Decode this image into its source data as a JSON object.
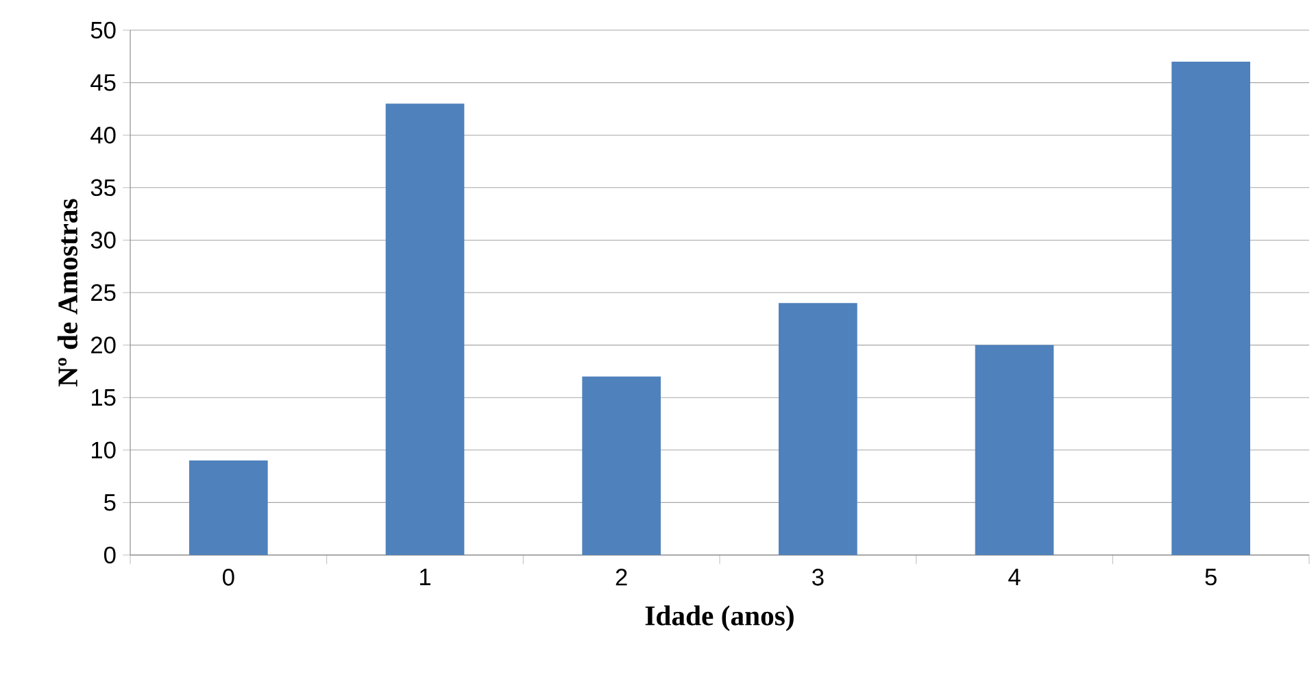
{
  "chart_data": {
    "type": "bar",
    "xlabel": "Idade (anos)",
    "ylabel": "Nº de Amostras",
    "categories": [
      "0",
      "1",
      "2",
      "3",
      "4",
      "5"
    ],
    "values": [
      9,
      43,
      17,
      24,
      20,
      47
    ],
    "color": "#4f81bd",
    "ylim": [
      0,
      50
    ],
    "yticks": [
      0,
      5,
      10,
      15,
      20,
      25,
      30,
      35,
      40,
      45,
      50
    ],
    "grid": "y"
  }
}
